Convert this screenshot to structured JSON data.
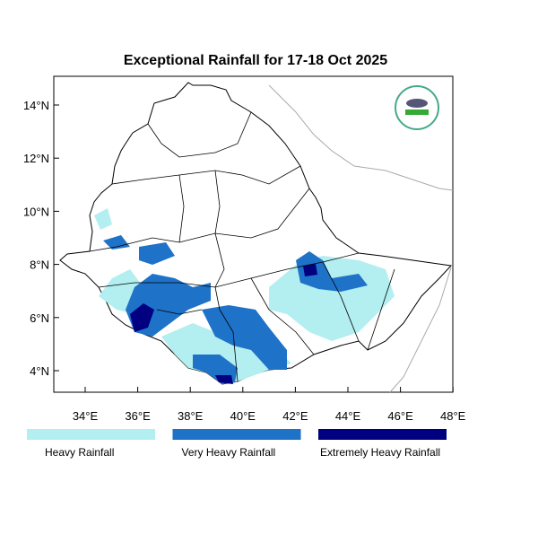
{
  "map": {
    "title": "Exceptional Rainfall for 17-18 Oct 2025",
    "lat_labels": [
      "14°N",
      "12°N",
      "10°N",
      "8°N",
      "6°N",
      "4°N"
    ],
    "lon_labels": [
      "34°E",
      "36°E",
      "38°E",
      "40°E",
      "42°E",
      "44°E",
      "46°E",
      "48°E"
    ],
    "legend": [
      {
        "label": "Heavy Rainfall",
        "color": "#b3eef0"
      },
      {
        "label": "Very Heavy Rainfall",
        "color": "#1e72c8"
      },
      {
        "label": "Extremely Heavy Rainfall",
        "color": "#000080"
      }
    ]
  }
}
